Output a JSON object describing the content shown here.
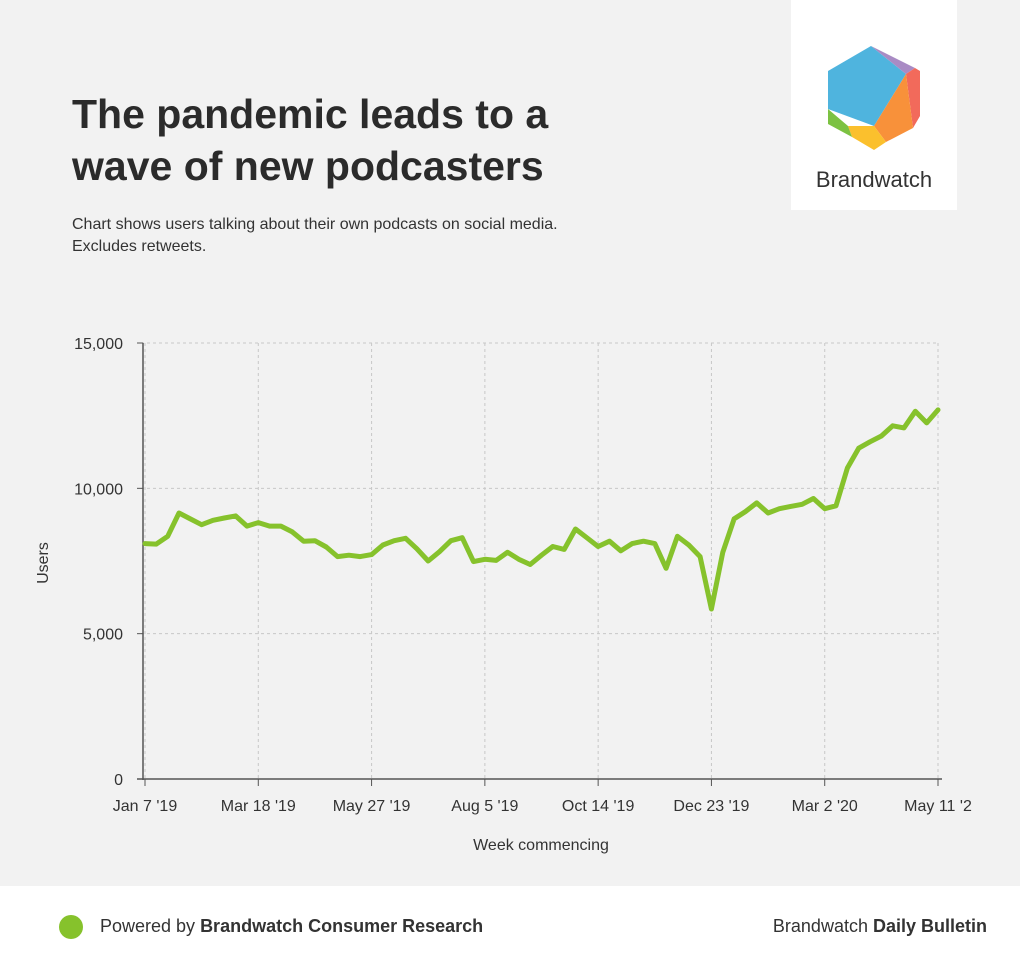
{
  "header": {
    "title_line1": "The pandemic leads to a",
    "title_line2": "wave of new podcasters",
    "subtitle_line1": "Chart shows users talking about their own podcasts on social media.",
    "subtitle_line2": "Excludes retweets."
  },
  "logo": {
    "text": "Brandwatch"
  },
  "footer": {
    "left_prefix": "Powered by ",
    "left_bold": "Brandwatch Consumer Research",
    "right_prefix": "Brandwatch ",
    "right_bold": "Daily Bulletin"
  },
  "colors": {
    "line": "#86c22c",
    "grid": "#c8c8c8",
    "axis": "#555555",
    "logo_blue": "#4fb4de",
    "logo_purple": "#a98bc4",
    "logo_red": "#f26a5b",
    "logo_orange": "#f8913a",
    "logo_yellow": "#fbc02d",
    "logo_green": "#7cc242"
  },
  "chart_data": {
    "type": "line",
    "xlabel": "Week commencing",
    "ylabel": "Users",
    "ylim": [
      0,
      15000
    ],
    "yticks": [
      0,
      5000,
      10000,
      15000
    ],
    "ytick_labels": [
      "0",
      "5,000",
      "10,000",
      "15,000"
    ],
    "xticks": [
      {
        "index": 0,
        "label": "Jan 7 '19"
      },
      {
        "index": 10,
        "label": "Mar 18 '19"
      },
      {
        "index": 20,
        "label": "May 27 '19"
      },
      {
        "index": 30,
        "label": "Aug 5 '19"
      },
      {
        "index": 40,
        "label": "Oct 14 '19"
      },
      {
        "index": 50,
        "label": "Dec 23 '19"
      },
      {
        "index": 60,
        "label": "Mar 2 '20"
      },
      {
        "index": 70,
        "label": "May 11 '2"
      }
    ],
    "grid": true,
    "series": [
      {
        "values": [
          8100,
          8080,
          8350,
          9150,
          8950,
          8750,
          8900,
          8980,
          9050,
          8700,
          8820,
          8700,
          8700,
          8500,
          8180,
          8200,
          7980,
          7650,
          7700,
          7650,
          7720,
          8050,
          8200,
          8280,
          7920,
          7500,
          7820,
          8200,
          8300,
          7480,
          7560,
          7520,
          7800,
          7560,
          7380,
          7700,
          8000,
          7900,
          8600,
          8300,
          8000,
          8180,
          7850,
          8100,
          8180,
          8100,
          7250,
          8350,
          8050,
          7650,
          5850,
          7800,
          8950,
          9200,
          9500,
          9150,
          9300,
          9380,
          9450,
          9650,
          9300,
          9400,
          10700,
          11380,
          11600,
          11800,
          12150,
          12080,
          12650,
          12250,
          12700
        ]
      }
    ]
  }
}
